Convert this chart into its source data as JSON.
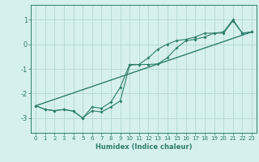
{
  "title": "",
  "xlabel": "Humidex (Indice chaleur)",
  "bg_color": "#d6f0ef",
  "grid_color": "#b8dada",
  "line_color": "#2e7d6e",
  "xlim": [
    -0.5,
    23.5
  ],
  "ylim": [
    -3.6,
    1.6
  ],
  "yticks": [
    -3,
    -2,
    -1,
    0,
    1
  ],
  "xticks": [
    0,
    1,
    2,
    3,
    4,
    5,
    6,
    7,
    8,
    9,
    10,
    11,
    12,
    13,
    14,
    15,
    16,
    17,
    18,
    19,
    20,
    21,
    22,
    23
  ],
  "line1_x": [
    0,
    1,
    2,
    3,
    4,
    5,
    6,
    7,
    8,
    9,
    10,
    11,
    12,
    13,
    14,
    15,
    16,
    17,
    18,
    19,
    20,
    21,
    22,
    23
  ],
  "line1_y": [
    -2.5,
    -2.65,
    -2.7,
    -2.65,
    -2.72,
    -3.0,
    -2.7,
    -2.75,
    -2.55,
    -2.3,
    -0.85,
    -0.82,
    -0.82,
    -0.8,
    -0.55,
    -0.15,
    0.15,
    0.2,
    0.3,
    0.45,
    0.45,
    0.95,
    0.45,
    0.5
  ],
  "line2_x": [
    0,
    1,
    2,
    3,
    4,
    5,
    6,
    7,
    8,
    9,
    10,
    11,
    12,
    13,
    14,
    15,
    16,
    17,
    18,
    19,
    20,
    21,
    22,
    23
  ],
  "line2_y": [
    -2.5,
    -2.65,
    -2.7,
    -2.65,
    -2.72,
    -3.0,
    -2.55,
    -2.6,
    -2.35,
    -1.75,
    -0.82,
    -0.82,
    -0.55,
    -0.2,
    0.0,
    0.15,
    0.2,
    0.3,
    0.45,
    0.45,
    0.5,
    1.0,
    0.45,
    0.5
  ],
  "line3_x": [
    0,
    23
  ],
  "line3_y": [
    -2.5,
    0.5
  ]
}
